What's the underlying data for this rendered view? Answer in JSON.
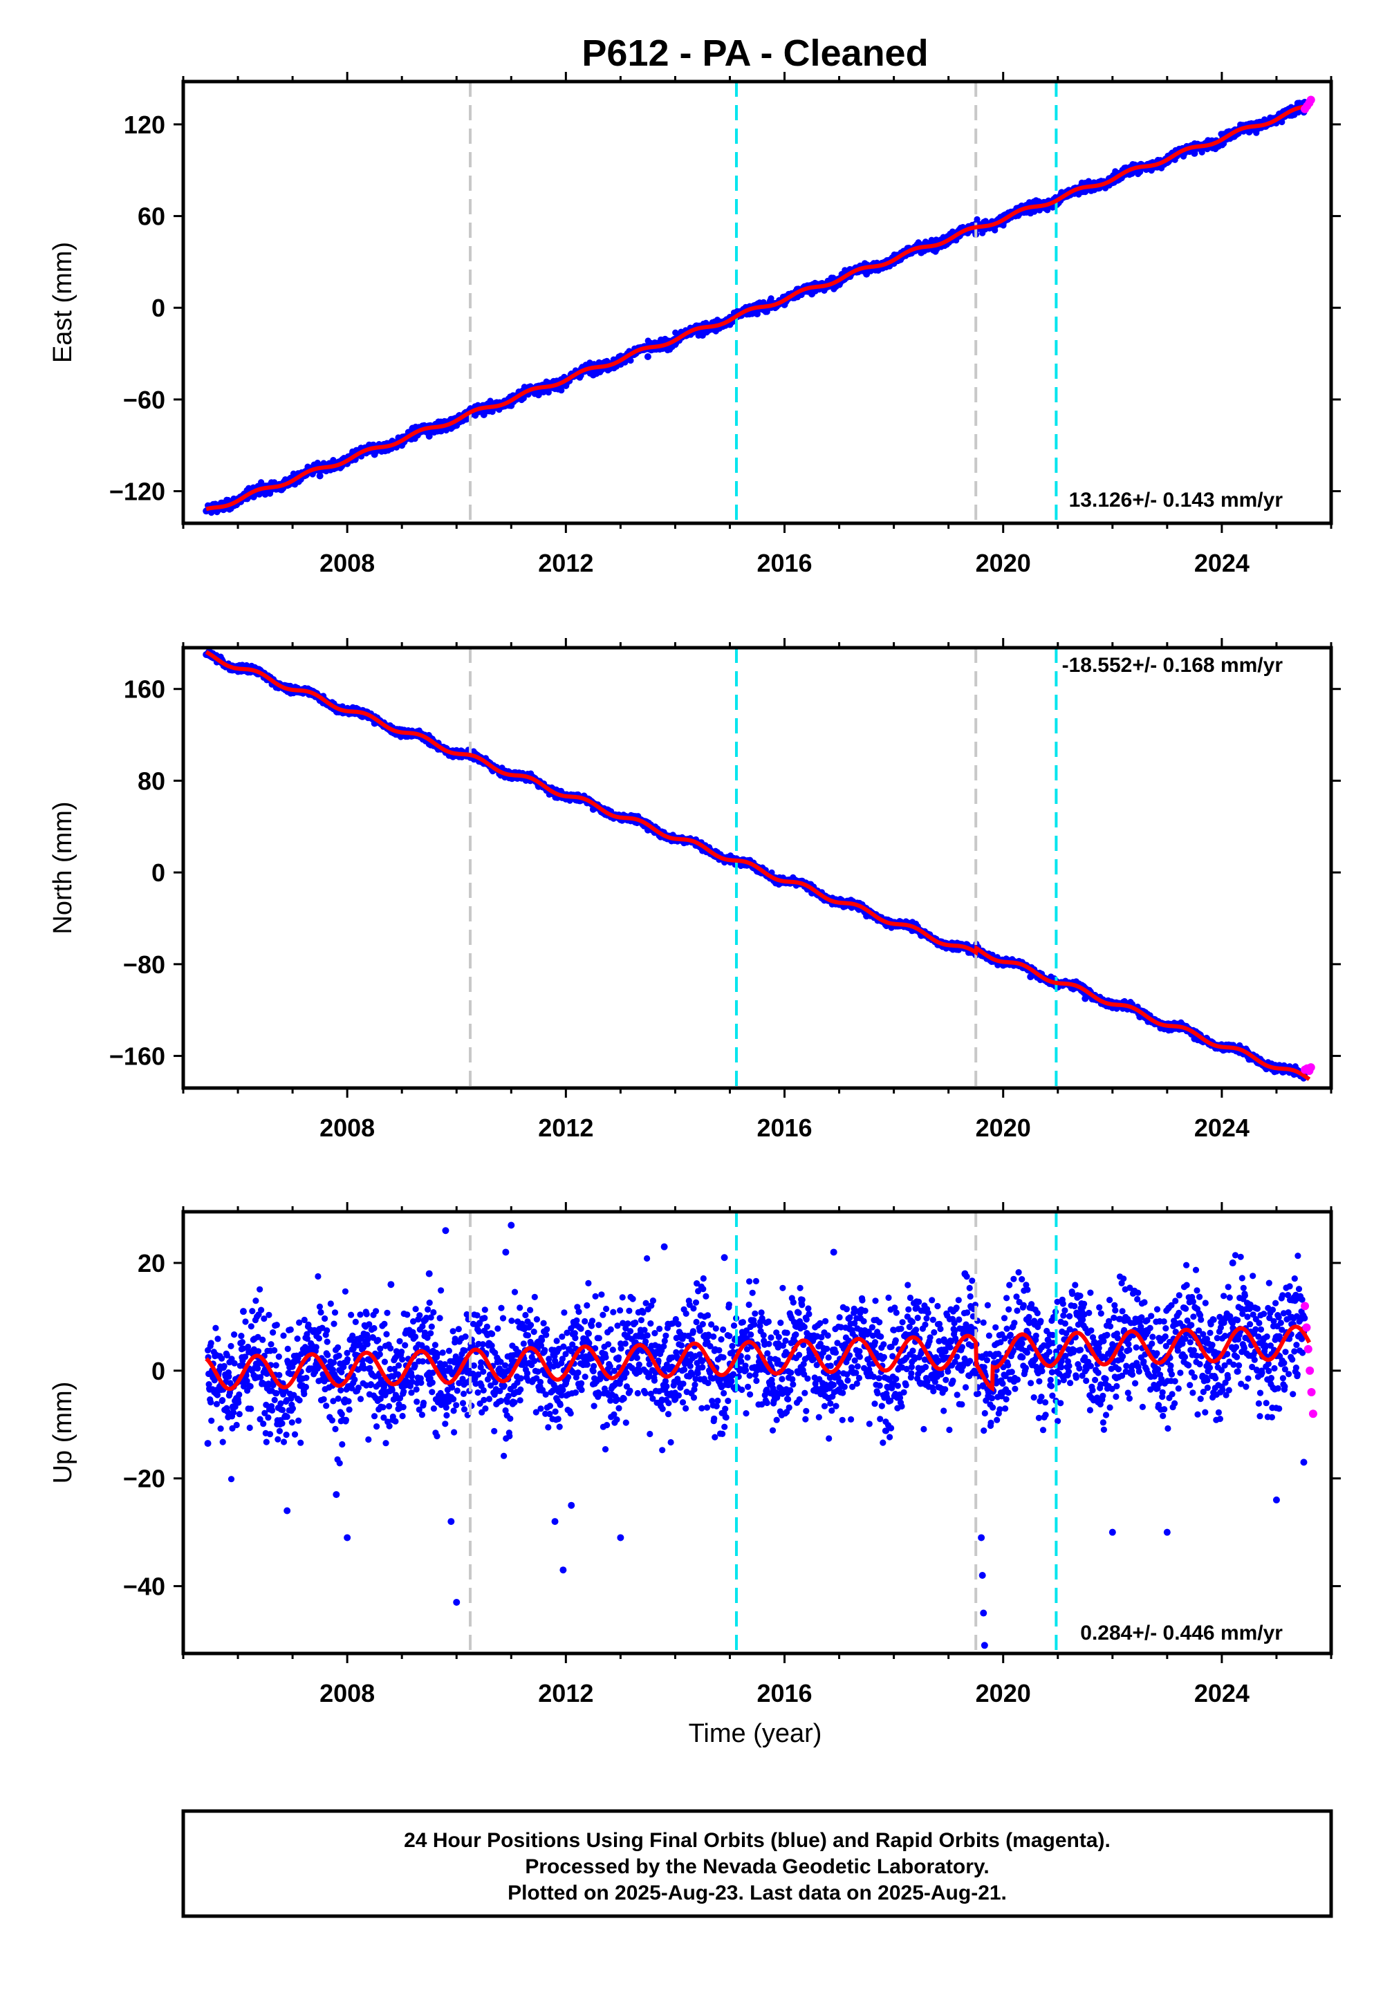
{
  "title": "P612  - PA - Cleaned",
  "colors": {
    "final_points": "#0000ff",
    "rapid_points": "#ff00ff",
    "model_line": "#ff0000",
    "equipment_change_line": "#c8c8c8",
    "event_line": "#00e5ee"
  },
  "xlabel": "Time (year)",
  "footer": {
    "line1": "24 Hour Positions Using Final Orbits (blue) and Rapid Orbits (magenta).",
    "line2": "Processed by the Nevada Geodetic Laboratory.",
    "line3": "Plotted on 2025-Aug-23. Last data on 2025-Aug-21."
  },
  "chart_data": [
    {
      "type": "scatter",
      "name": "east",
      "ylabel": "East (mm)",
      "rate_text": "13.126+/- 0.143 mm/yr",
      "xlim": [
        2005.0,
        2026.0
      ],
      "ylim": [
        -141,
        148
      ],
      "xticks": [
        2008,
        2012,
        2016,
        2020,
        2024
      ],
      "yticks": [
        -120,
        -60,
        0,
        60,
        120
      ],
      "vlines_gray": [
        2010.25,
        2019.5
      ],
      "vlines_cyan": [
        2015.12,
        2020.97
      ],
      "trend": {
        "t0": 2005.42,
        "y0": -133,
        "rate": 13.126,
        "seasonal_amp": 1.5
      },
      "series": [
        {
          "name": "Final",
          "x": [
            2005.42,
            2006.0,
            2006.5,
            2007.0,
            2007.5,
            2008.0,
            2008.5,
            2009.0,
            2009.5,
            2010.0,
            2010.5,
            2011.0,
            2011.5,
            2012.0,
            2012.5,
            2013.0,
            2013.5,
            2014.0,
            2014.5,
            2015.0,
            2015.5,
            2016.0,
            2016.5,
            2017.0,
            2017.5,
            2018.0,
            2018.5,
            2019.0,
            2019.5,
            2020.0,
            2020.5,
            2021.0,
            2021.5,
            2022.0,
            2022.5,
            2023.0,
            2023.5,
            2024.0,
            2024.5,
            2025.0,
            2025.5
          ],
          "y": [
            -133,
            -125,
            -122,
            -112,
            -110,
            -102,
            -96,
            -90,
            -84,
            -77,
            -70,
            -64,
            -57,
            -51,
            -44,
            -37,
            -32,
            -24,
            -18,
            -11,
            -4,
            2,
            9,
            16,
            22,
            29,
            36,
            43,
            48,
            55,
            62,
            69,
            76,
            82,
            89,
            95,
            101,
            108,
            115,
            122,
            128
          ]
        },
        {
          "name": "Rapid",
          "x": [
            2025.52,
            2025.56,
            2025.6,
            2025.63
          ],
          "y": [
            130,
            132,
            134,
            136
          ]
        }
      ]
    },
    {
      "type": "scatter",
      "name": "north",
      "ylabel": "North (mm)",
      "rate_text": "-18.552+/- 0.168 mm/yr",
      "xlim": [
        2005.0,
        2026.0
      ],
      "ylim": [
        -188,
        196
      ],
      "xticks": [
        2008,
        2012,
        2016,
        2020,
        2024
      ],
      "yticks": [
        -160,
        -80,
        0,
        80,
        160
      ],
      "vlines_gray": [
        2010.25,
        2019.5
      ],
      "vlines_cyan": [
        2015.12,
        2020.97
      ],
      "trend": {
        "t0": 2005.42,
        "y0": 190,
        "rate": -18.552,
        "seasonal_amp": 2.5
      },
      "series": [
        {
          "name": "Final",
          "x": [
            2005.42,
            2006.0,
            2006.5,
            2007.0,
            2007.5,
            2008.0,
            2008.5,
            2009.0,
            2009.5,
            2010.0,
            2010.5,
            2011.0,
            2011.5,
            2012.0,
            2012.5,
            2013.0,
            2013.5,
            2014.0,
            2014.5,
            2015.0,
            2015.5,
            2016.0,
            2016.5,
            2017.0,
            2017.5,
            2018.0,
            2018.5,
            2019.0,
            2019.5,
            2020.0,
            2020.5,
            2021.0,
            2021.5,
            2022.0,
            2022.5,
            2023.0,
            2023.5,
            2024.0,
            2024.5,
            2025.0,
            2025.5
          ],
          "y": [
            190,
            178,
            170,
            160,
            150,
            140,
            130,
            122,
            112,
            103,
            95,
            85,
            75,
            64,
            55,
            46,
            37,
            28,
            19,
            10,
            1,
            -8,
            -18,
            -28,
            -38,
            -46,
            -55,
            -64,
            -72,
            -81,
            -91,
            -100,
            -110,
            -118,
            -126,
            -136,
            -145,
            -154,
            -163,
            -170,
            -176
          ]
        },
        {
          "name": "Rapid",
          "x": [
            2025.52,
            2025.56,
            2025.6,
            2025.63
          ],
          "y": [
            -172,
            -171,
            -173,
            -170
          ]
        }
      ]
    },
    {
      "type": "scatter",
      "name": "up",
      "ylabel": "Up (mm)",
      "rate_text": "0.284+/- 0.446 mm/yr",
      "xlim": [
        2005.0,
        2026.0
      ],
      "ylim": [
        -52.5,
        29.5
      ],
      "xticks": [
        2008,
        2012,
        2016,
        2020,
        2024
      ],
      "yticks": [
        -40,
        -20,
        0,
        20
      ],
      "vlines_gray": [
        2010.25,
        2019.5
      ],
      "vlines_cyan": [
        2015.12,
        2020.97
      ],
      "trend": {
        "t0": 2005.42,
        "y0": -0.5,
        "rate": 0.284,
        "seasonal_amp": 3.0
      },
      "series": [
        {
          "name": "Final",
          "x": [
            2005.45,
            2006.1,
            2006.9,
            2007.8,
            2008.0,
            2008.8,
            2009.5,
            2009.8,
            2009.9,
            2010.0,
            2010.9,
            2011.0,
            2011.8,
            2011.95,
            2012.1,
            2013.0,
            2013.8,
            2014.9,
            2016.9,
            2019.3,
            2019.6,
            2019.62,
            2019.64,
            2019.66,
            2022.0,
            2023.0,
            2024.2,
            2025.0,
            2025.5
          ],
          "y": [
            -13.5,
            11,
            -26,
            -23,
            -31,
            16,
            18,
            26,
            -28,
            -43,
            22,
            27,
            -28,
            -37,
            -25,
            -31,
            23,
            21,
            22,
            18,
            -31,
            -38,
            -45,
            -51,
            -30,
            -30,
            20,
            -24,
            -17
          ]
        },
        {
          "name": "Rapid",
          "x": [
            2025.52,
            2025.55,
            2025.58,
            2025.61,
            2025.64,
            2025.67
          ],
          "y": [
            12,
            8,
            4,
            0,
            -4,
            -8
          ]
        }
      ]
    }
  ]
}
